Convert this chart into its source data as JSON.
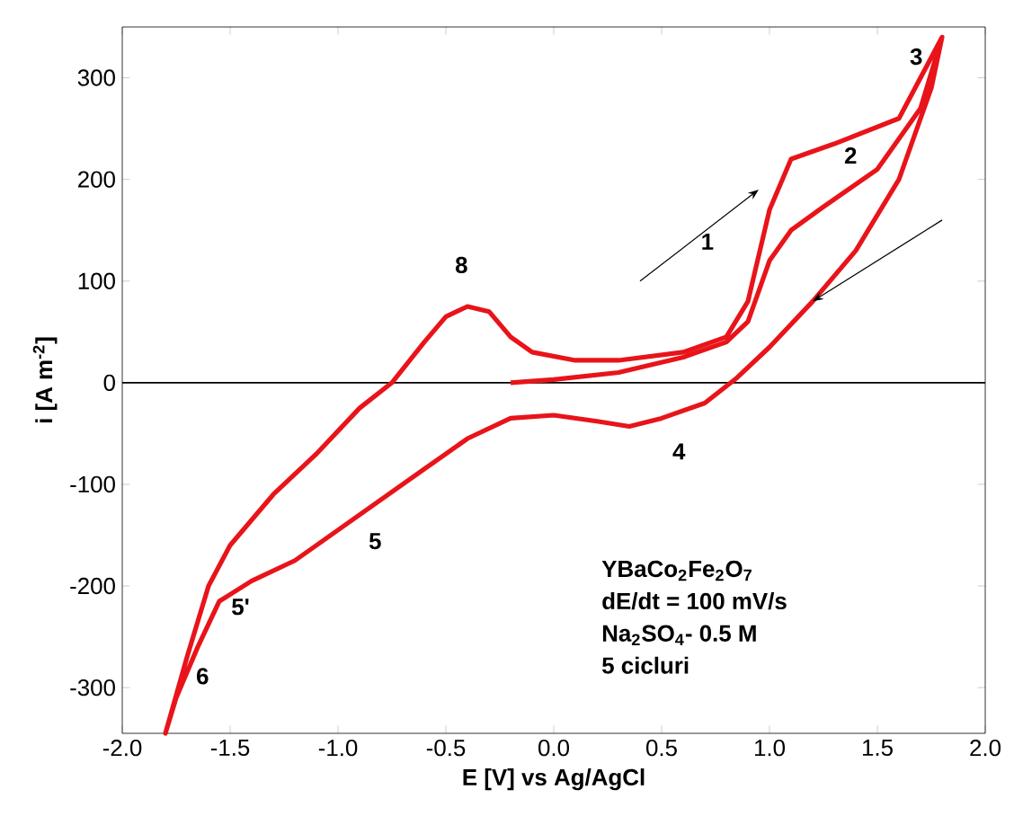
{
  "chart_data": {
    "type": "line",
    "xlabel": "E [V] vs Ag/AgCl",
    "ylabel": "i [A m$^{-2}$]",
    "x": [
      -0.2,
      0.0,
      0.3,
      0.6,
      0.8,
      0.9,
      1.0,
      1.1,
      1.25,
      1.5,
      1.7,
      1.8,
      1.75,
      1.6,
      1.4,
      1.2,
      1.0,
      0.85,
      0.7,
      0.5,
      0.35,
      0.2,
      0.0,
      -0.2,
      -0.4,
      -0.6,
      -0.8,
      -1.0,
      -1.2,
      -1.4,
      -1.55,
      -1.65,
      -1.75,
      -1.8,
      -1.7,
      -1.6,
      -1.5,
      -1.3,
      -1.1,
      -0.9,
      -0.75,
      -0.6,
      -0.5,
      -0.4,
      -0.3,
      -0.2,
      -0.1,
      0.1,
      0.3,
      0.6,
      0.8,
      0.9,
      1.0,
      1.1,
      1.3,
      1.6,
      1.8
    ],
    "series": [
      {
        "color": "#e8141a",
        "values": [
          0,
          3,
          10,
          25,
          40,
          60,
          120,
          150,
          173,
          210,
          270,
          340,
          290,
          200,
          130,
          80,
          35,
          5,
          -20,
          -35,
          -43,
          -38,
          -32,
          -35,
          -55,
          -85,
          -115,
          -145,
          -175,
          -195,
          -215,
          -260,
          -310,
          -345,
          -270,
          -200,
          -160,
          -110,
          -70,
          -25,
          0,
          40,
          65,
          75,
          70,
          45,
          30,
          22,
          22,
          30,
          45,
          80,
          170,
          220,
          235,
          260,
          340
        ]
      }
    ],
    "xlim": [
      -2,
      2
    ],
    "ylim": [
      -345,
      350
    ],
    "xticks": [
      {
        "value": -2,
        "label": "-2.0"
      },
      {
        "value": -1.5,
        "label": "-1.5"
      },
      {
        "value": -1,
        "label": "-1.0"
      },
      {
        "value": -0.5,
        "label": "-0.5"
      },
      {
        "value": 0,
        "label": "0.0"
      },
      {
        "value": 0.5,
        "label": "0.5"
      },
      {
        "value": 1,
        "label": "1.0"
      },
      {
        "value": 1.5,
        "label": "1.5"
      },
      {
        "value": 2,
        "label": "2.0"
      }
    ],
    "yticks": [
      -300,
      -200,
      -100,
      0,
      100,
      200,
      300
    ],
    "ref_lines": [
      {
        "axis": "y",
        "value": 0,
        "color": "#000000"
      }
    ],
    "annotations": [
      "1",
      "2",
      "3",
      "8",
      "4",
      "5",
      "5'",
      "6",
      "YBaCo$_{2}$Fe$_{2}$O$_{7}$",
      "dE/dt = 100 mV/s",
      "Na$_{2}$SO$_{4}$- 0.5 M",
      "5 cicluri"
    ],
    "grid": false,
    "marker": "none",
    "line_style": "solid"
  }
}
